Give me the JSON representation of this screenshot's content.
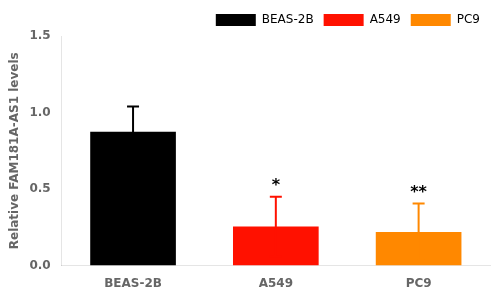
{
  "chart_data": {
    "type": "bar",
    "categories": [
      "BEAS-2B",
      "A549",
      "PC9"
    ],
    "values": [
      0.875,
      0.255,
      0.22
    ],
    "errors": [
      0.165,
      0.195,
      0.185
    ],
    "colors": [
      "#000000",
      "#ff1100",
      "#ff8800"
    ],
    "ylabel": "Relative FAM181A-AS1 levels",
    "ylim": [
      0,
      1.5
    ],
    "yticks": [
      {
        "value": 0.0,
        "label": "0.0"
      },
      0.5,
      {
        "value": 1.0,
        "label": "1.0"
      },
      1.5
    ],
    "annotations": [
      {
        "category": "A549",
        "text": "*"
      },
      {
        "category": "PC9",
        "text": "**"
      }
    ],
    "legend": "upper right",
    "grid": false
  }
}
